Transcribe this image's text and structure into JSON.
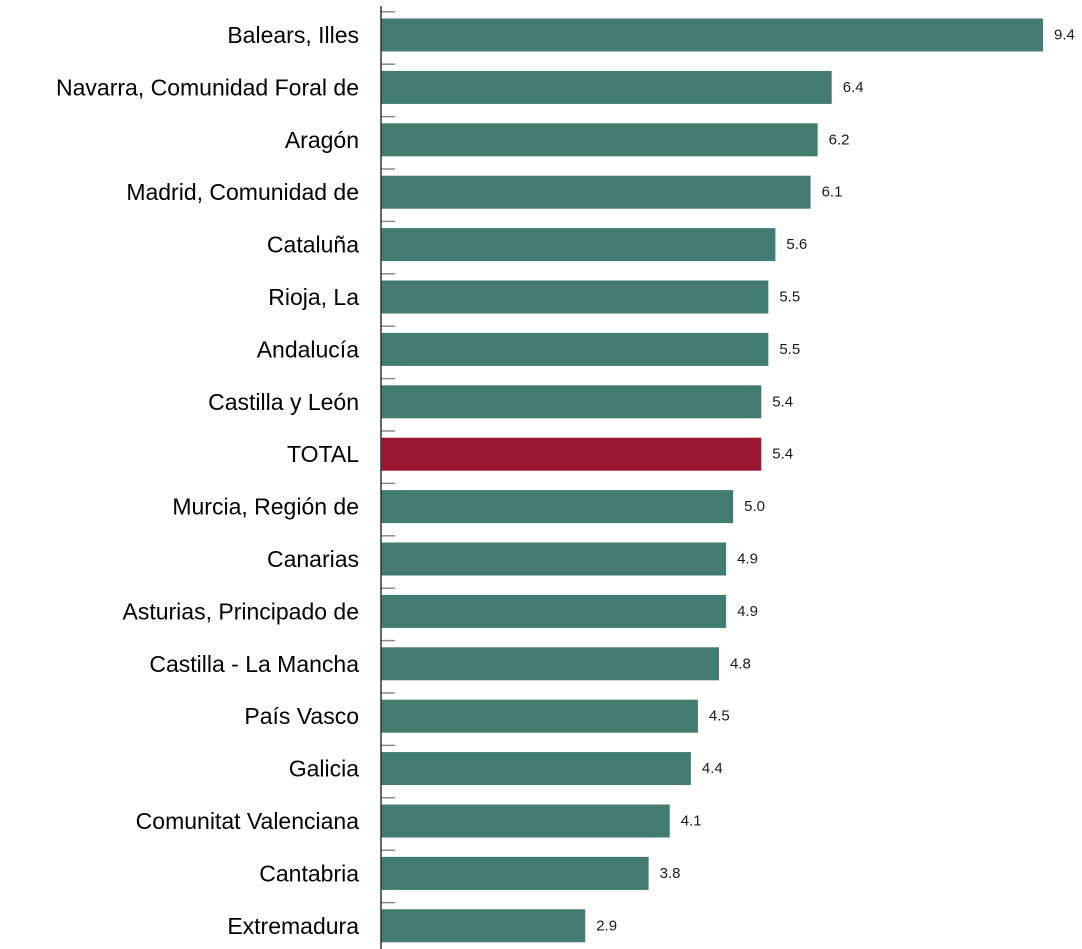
{
  "chart_data": {
    "type": "bar",
    "orientation": "horizontal",
    "categories": [
      "Balears, Illes",
      "Navarra, Comunidad Foral de",
      "Aragón",
      "Madrid, Comunidad de",
      "Cataluña",
      "Rioja, La",
      "Andalucía",
      "Castilla y León",
      "TOTAL",
      "Murcia, Región de",
      "Canarias",
      "Asturias, Principado de",
      "Castilla - La Mancha",
      "País Vasco",
      "Galicia",
      "Comunitat Valenciana",
      "Cantabria",
      "Extremadura"
    ],
    "values": [
      9.4,
      6.4,
      6.2,
      6.1,
      5.6,
      5.5,
      5.5,
      5.4,
      5.4,
      5.0,
      4.9,
      4.9,
      4.8,
      4.5,
      4.4,
      4.1,
      3.8,
      2.9
    ],
    "value_labels": [
      "9.4",
      "6.4",
      "6.2",
      "6.1",
      "5.6",
      "5.5",
      "5.5",
      "5.4",
      "5.4",
      "5.0",
      "4.9",
      "4.9",
      "4.8",
      "4.5",
      "4.4",
      "4.1",
      "3.8",
      "2.9"
    ],
    "highlight_category": "TOTAL",
    "xlim": [
      0,
      9.4
    ],
    "grid": false,
    "legend": false,
    "title": "",
    "xlabel": "",
    "ylabel": ""
  },
  "colors": {
    "bar": "#427b70",
    "highlight": "#9a1631",
    "axis": "#333333",
    "tick": "#8a8a8a"
  }
}
